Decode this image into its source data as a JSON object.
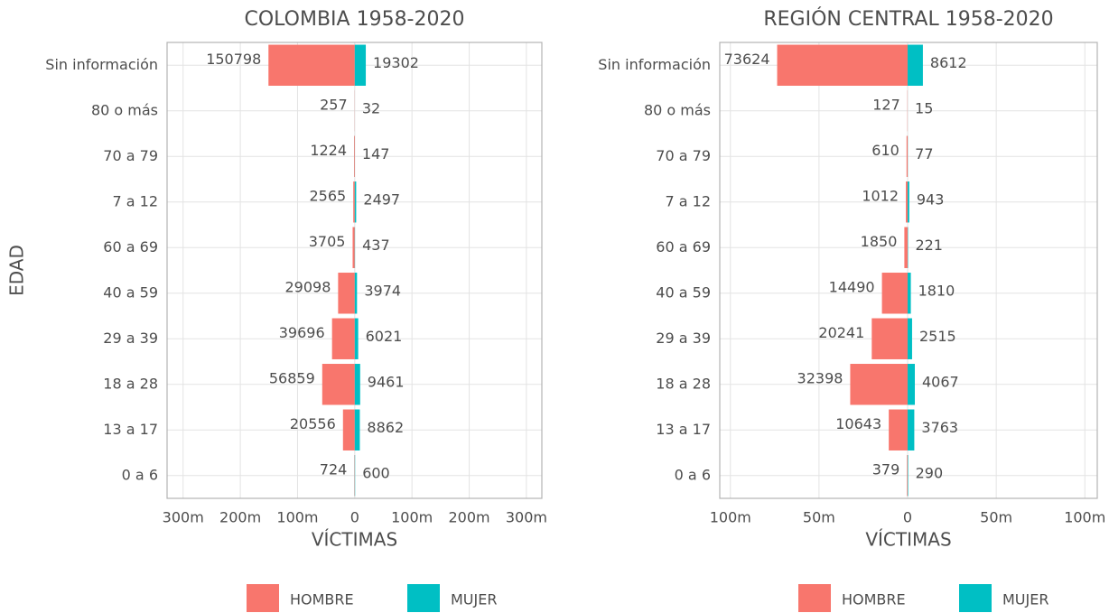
{
  "chart_data": [
    {
      "type": "bar",
      "orientation": "horizontal",
      "title": "COLOMBIA 1958-2020",
      "x_label": "VÍCTIMAS",
      "y_label": "EDAD",
      "categories": [
        "0 a 6",
        "13 a 17",
        "18 a 28",
        "29 a 39",
        "40 a 59",
        "60 a 69",
        "7 a 12",
        "70 a 79",
        "80 o más",
        "Sin información"
      ],
      "series": [
        {
          "name": "HOMBRE",
          "color": "#F8766D",
          "values": [
            -724,
            -20556,
            -56859,
            -39696,
            -29098,
            -3705,
            -2565,
            -1224,
            -257,
            -150798
          ],
          "value_labels": [
            "724",
            "20556",
            "56859",
            "39696",
            "29098",
            "3705",
            "2565",
            "1224",
            "257",
            "150798"
          ]
        },
        {
          "name": "MUJER",
          "color": "#00BFC4",
          "values": [
            600,
            8862,
            9461,
            6021,
            3974,
            437,
            2497,
            147,
            32,
            19302
          ]
        }
      ],
      "xlim": [
        -328000,
        327000
      ],
      "xticks": [
        {
          "value": -300000,
          "label": "300m"
        },
        {
          "value": -200000,
          "label": "200m"
        },
        {
          "value": -100000,
          "label": "100m"
        },
        0,
        {
          "value": 100000,
          "label": "100m"
        },
        {
          "value": 200000,
          "label": "200m"
        },
        {
          "value": 300000,
          "label": "300m"
        }
      ],
      "grid": true,
      "legend": "bottom"
    },
    {
      "type": "bar",
      "orientation": "horizontal",
      "title": "REGIÓN CENTRAL 1958-2020",
      "x_label": "VÍCTIMAS",
      "categories": [
        "0 a 6",
        "13 a 17",
        "18 a 28",
        "29 a 39",
        "40 a 59",
        "60 a 69",
        "7 a 12",
        "70 a 79",
        "80 o más",
        "Sin información"
      ],
      "series": [
        {
          "name": "HOMBRE",
          "color": "#F8766D",
          "values": [
            -379,
            -10643,
            -32398,
            -20241,
            -14490,
            -1850,
            -1012,
            -610,
            -127,
            -73624
          ],
          "value_labels": [
            "379",
            "10643",
            "32398",
            "20241",
            "14490",
            "1850",
            "1012",
            "610",
            "127",
            "73624"
          ]
        },
        {
          "name": "MUJER",
          "color": "#00BFC4",
          "values": [
            290,
            3763,
            4067,
            2515,
            1810,
            221,
            943,
            77,
            15,
            8612
          ]
        }
      ],
      "xlim": [
        -106000,
        107000
      ],
      "xticks": [
        {
          "value": -100000,
          "label": "100m"
        },
        {
          "value": -50000,
          "label": "50m"
        },
        0,
        {
          "value": 50000,
          "label": "50m"
        },
        {
          "value": 100000,
          "label": "100m"
        }
      ],
      "grid": true,
      "legend": "bottom"
    }
  ]
}
